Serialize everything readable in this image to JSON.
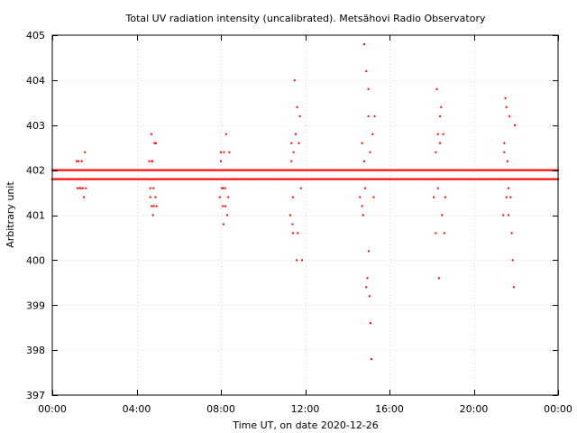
{
  "chart_data": {
    "type": "scatter",
    "title": "Total UV radiation intensity (uncalibrated). Metsähovi Radio Observatory",
    "xlabel": "Time UT, on date 2020-12-26",
    "ylabel": "Arbitrary unit",
    "x_unit": "hours UT",
    "xlim": [
      0,
      24
    ],
    "ylim": [
      397,
      405
    ],
    "x_ticks": [
      0,
      4,
      8,
      12,
      16,
      20,
      24
    ],
    "x_tick_labels": [
      "00:00",
      "04:00",
      "08:00",
      "12:00",
      "16:00",
      "20:00",
      "00:00"
    ],
    "y_ticks": [
      397,
      398,
      399,
      400,
      401,
      402,
      403,
      404,
      405
    ],
    "y_tick_labels": [
      "397",
      "398",
      "399",
      "400",
      "401",
      "402",
      "403",
      "404",
      "405"
    ],
    "grid": true,
    "legend": "none",
    "marker_color": "#ff0000",
    "baseline": {
      "levels": [
        401.8,
        402.0
      ],
      "x_start": 0,
      "x_end": 24,
      "x_step": 0.05
    },
    "bursts": [
      {
        "x": [
          1.15,
          1.2,
          1.25,
          1.3,
          1.35,
          1.4,
          1.45,
          1.5,
          1.55,
          1.6
        ],
        "y": [
          402.2,
          401.6,
          402.2,
          401.6,
          401.6,
          402.2,
          401.6,
          401.4,
          402.4,
          401.6
        ]
      },
      {
        "x": [
          4.6,
          4.65,
          4.7,
          4.72,
          4.75,
          4.78,
          4.8,
          4.82,
          4.85,
          4.9,
          4.92,
          4.95
        ],
        "y": [
          402.2,
          401.6,
          402.8,
          401.2,
          402.2,
          401.0,
          401.6,
          401.2,
          402.6,
          401.4,
          402.6,
          401.2
        ],
        "note_y_extra": [
          401.4,
          402.2
        ]
      },
      {
        "x": [
          7.95,
          8.0,
          8.05,
          8.1,
          8.12,
          8.15,
          8.2,
          8.22,
          8.25,
          8.3,
          8.35,
          8.4
        ],
        "y": [
          401.4,
          402.4,
          401.6,
          401.2,
          400.8,
          402.4,
          401.6,
          401.2,
          402.8,
          401.0,
          401.4,
          402.4
        ],
        "note_y_extra": [
          402.2,
          401.6
        ]
      },
      {
        "x": [
          11.3,
          11.35,
          11.4,
          11.42,
          11.45,
          11.5,
          11.55,
          11.6,
          11.62,
          11.65,
          11.7,
          11.75,
          11.8,
          11.85
        ],
        "y": [
          401.0,
          402.2,
          400.8,
          401.4,
          402.4,
          404.0,
          402.8,
          400.0,
          403.4,
          400.6,
          402.6,
          403.2,
          401.6,
          400.0
        ],
        "note_y_extra": [
          402.6,
          400.6
        ]
      },
      {
        "x": [
          14.6,
          14.7,
          14.75,
          14.8,
          14.85,
          14.9,
          14.95,
          15.0,
          15.02,
          15.05,
          15.08,
          15.1,
          15.15,
          15.2,
          15.25,
          15.3
        ],
        "y": [
          401.4,
          402.6,
          401.0,
          404.8,
          401.6,
          404.2,
          399.6,
          403.8,
          400.2,
          399.2,
          402.4,
          398.6,
          397.8,
          402.8,
          401.4,
          403.2
        ],
        "note_y_extra": [
          401.2,
          402.2,
          399.4,
          403.2
        ]
      },
      {
        "x": [
          18.1,
          18.2,
          18.25,
          18.3,
          18.35,
          18.4,
          18.45,
          18.5,
          18.55,
          18.6,
          18.65
        ],
        "y": [
          401.4,
          400.6,
          403.8,
          402.8,
          399.6,
          402.6,
          403.4,
          401.0,
          402.8,
          400.6,
          401.4
        ],
        "note_y_extra": [
          402.4,
          401.6,
          403.2
        ]
      },
      {
        "x": [
          21.4,
          21.45,
          21.5,
          21.55,
          21.6,
          21.65,
          21.7,
          21.75,
          21.8,
          21.85,
          21.9,
          21.95
        ],
        "y": [
          401.0,
          402.4,
          403.6,
          401.4,
          402.2,
          401.0,
          403.2,
          401.4,
          400.6,
          400.0,
          399.4,
          403.0
        ],
        "note_y_extra": [
          402.6,
          403.4,
          401.6
        ]
      }
    ]
  }
}
